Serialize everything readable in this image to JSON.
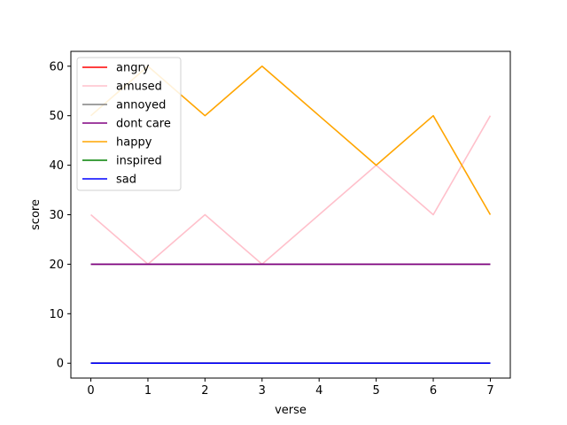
{
  "chart_data": {
    "type": "line",
    "xlabel": "verse",
    "ylabel": "score",
    "x": [
      0,
      1,
      2,
      3,
      4,
      5,
      6,
      7
    ],
    "xlim": [
      -0.35,
      7.35
    ],
    "ylim": [
      -3,
      63
    ],
    "xticks": [
      "0",
      "1",
      "2",
      "3",
      "4",
      "5",
      "6",
      "7"
    ],
    "yticks": [
      "0",
      "10",
      "20",
      "30",
      "40",
      "50",
      "60"
    ],
    "grid": false,
    "legend_position": "upper-left",
    "series": [
      {
        "name": "angry",
        "color": "#ff0000",
        "values": [
          0,
          0,
          0,
          0,
          0,
          0,
          0,
          0
        ]
      },
      {
        "name": "amused",
        "color": "#ffc0cb",
        "values": [
          30,
          20,
          30,
          20,
          30,
          40,
          30,
          50
        ]
      },
      {
        "name": "annoyed",
        "color": "#808080",
        "values": [
          20,
          20,
          20,
          20,
          20,
          20,
          20,
          20
        ]
      },
      {
        "name": "dont care",
        "color": "#800080",
        "values": [
          20,
          20,
          20,
          20,
          20,
          20,
          20,
          20
        ]
      },
      {
        "name": "happy",
        "color": "#ffa500",
        "values": [
          50,
          60,
          50,
          60,
          50,
          40,
          50,
          30
        ]
      },
      {
        "name": "inspired",
        "color": "#008000",
        "values": [
          0,
          0,
          0,
          0,
          0,
          0,
          0,
          0
        ]
      },
      {
        "name": "sad",
        "color": "#0000ff",
        "values": [
          0,
          0,
          0,
          0,
          0,
          0,
          0,
          0
        ]
      }
    ]
  }
}
